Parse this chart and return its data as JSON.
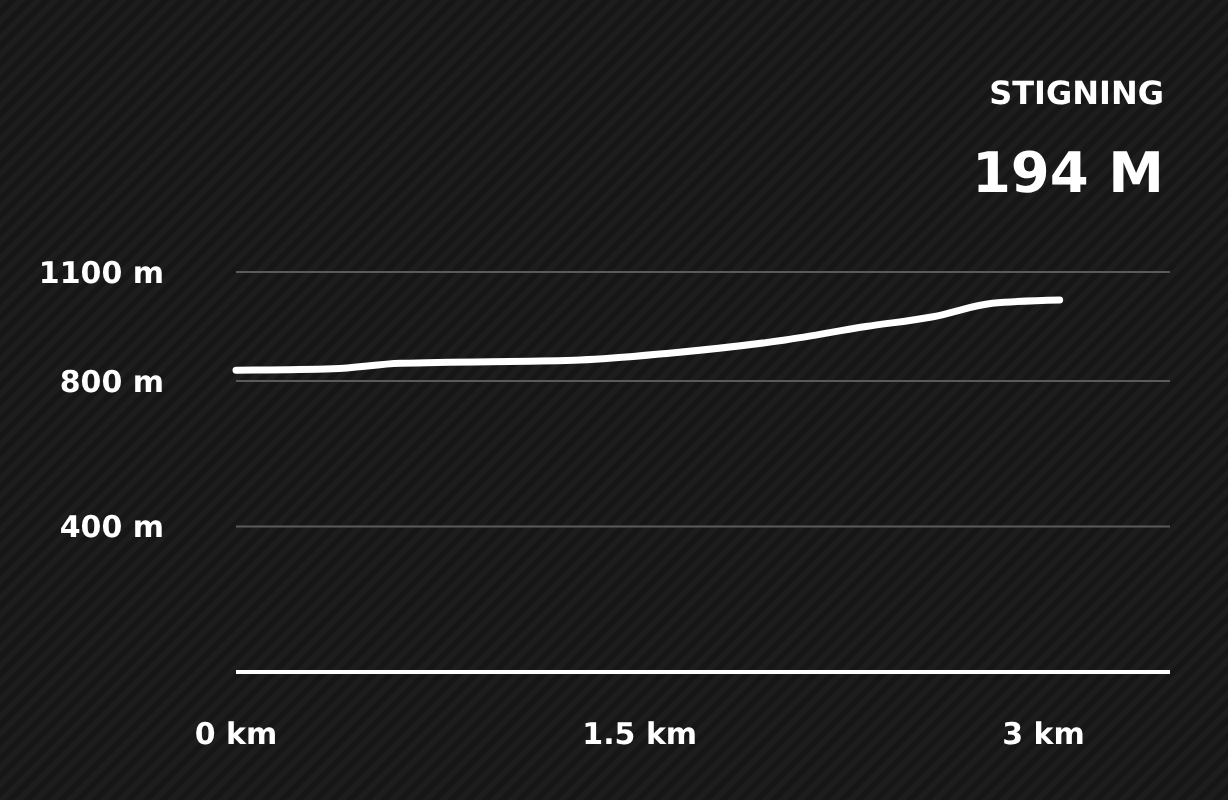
{
  "chart_data": {
    "type": "line",
    "title": "STIGNING",
    "subtitle": "194 M",
    "x": [
      0,
      0.36,
      0.61,
      1.28,
      1.6,
      2.04,
      2.34,
      2.59,
      2.81,
      3.06
    ],
    "series": [
      {
        "color": "#ffffff",
        "values": [
          830,
          834,
          849,
          858,
          876,
          913,
          950,
          977,
          1014,
          1023
        ]
      }
    ],
    "xlim": [
      0,
      3.47
    ],
    "xticks": [
      {
        "value": 0,
        "label": "0 km"
      },
      {
        "value": 1.5,
        "label": "1.5 km"
      },
      {
        "value": 3,
        "label": "3 km"
      }
    ],
    "ylim": [
      0,
      1100
    ],
    "yticks": [
      {
        "value": 0,
        "label": null
      },
      {
        "value": 400,
        "label": "400 m"
      },
      {
        "value": 800,
        "label": "800 m"
      },
      {
        "value": 1100,
        "label": "1100 m"
      }
    ],
    "grid": "y",
    "marker": "none",
    "line_style": "solid"
  }
}
